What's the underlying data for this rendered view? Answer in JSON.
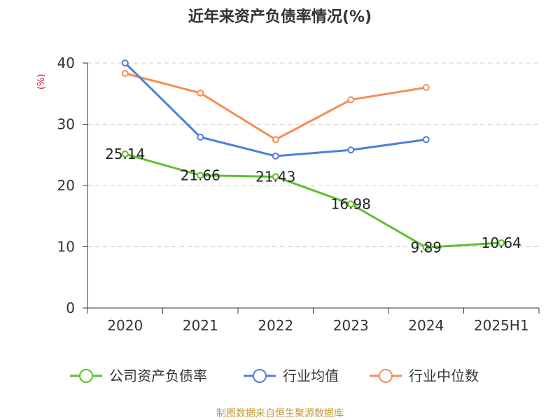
{
  "chart_data": {
    "type": "line",
    "title": "近年来资产负债率情况(%)",
    "ylabel": "(%)",
    "xlabel": "",
    "categories": [
      "2020",
      "2021",
      "2022",
      "2023",
      "2024",
      "2025H1"
    ],
    "ylim": [
      0,
      40
    ],
    "yticks": [
      0,
      10,
      20,
      30,
      40
    ],
    "grid": true,
    "legend_position": "bottom",
    "series": [
      {
        "name": "公司资产负债率",
        "color": "#5cc12b",
        "values": [
          25.14,
          21.66,
          21.43,
          16.98,
          9.89,
          10.64
        ],
        "labels": [
          "25.14",
          "21.66",
          "21.43",
          "16.98",
          "9.89",
          "10.64"
        ]
      },
      {
        "name": "行业均值",
        "color": "#4e80dc",
        "values": [
          40.0,
          27.9,
          24.8,
          25.8,
          27.5,
          null
        ]
      },
      {
        "name": "行业中位数",
        "color": "#f78d55",
        "values": [
          38.3,
          35.1,
          27.5,
          34.0,
          36.0,
          null
        ]
      }
    ],
    "source": "制图数据来自恒生聚源数据库"
  }
}
